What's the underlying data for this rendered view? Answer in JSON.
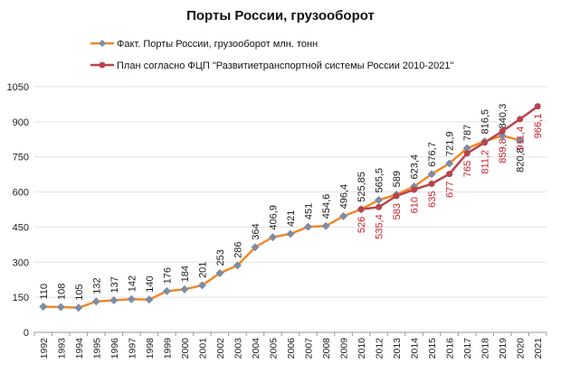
{
  "chart_data": {
    "type": "line",
    "title": "Порты России,  грузооборот",
    "xlabel": "",
    "ylabel": "",
    "ylim": [
      0,
      1050
    ],
    "yticks": [
      0,
      150,
      300,
      450,
      600,
      750,
      900,
      1050
    ],
    "grid": true,
    "legend_position": "top",
    "categories": [
      "1992",
      "1993",
      "1994",
      "1995",
      "1996",
      "1997",
      "1998",
      "1999",
      "2000",
      "2001",
      "2002",
      "2003",
      "2004",
      "2005",
      "2006",
      "2007",
      "2008",
      "2009",
      "2010",
      "2012",
      "2013",
      "2014",
      "2015",
      "2016",
      "2017",
      "2018",
      "2019",
      "2020",
      "2021"
    ],
    "series": [
      {
        "name": "Факт. Порты России, грузооборот млн. тонн",
        "color": "#F0882A",
        "marker_color": "#7D8CA6",
        "label_color": "#1a1a1a",
        "values": [
          110,
          108,
          105,
          132,
          137,
          142,
          140,
          176,
          184,
          201,
          253,
          286,
          364,
          406.9,
          421,
          451,
          454.6,
          496.4,
          525.85,
          565.5,
          589,
          623.4,
          676.7,
          721.9,
          787,
          816.5,
          840.3,
          820.8,
          null
        ],
        "labels": [
          "110",
          "108",
          "105",
          "132",
          "137",
          "142",
          "140",
          "176",
          "184",
          "201",
          "253",
          "286",
          "364",
          "406,9",
          "421",
          "451",
          "454,6",
          "496,4",
          "525,85",
          "565,5",
          "589",
          "623,4",
          "676,7",
          "721,9",
          "787",
          "816,5",
          "840,3",
          "820,8",
          null
        ]
      },
      {
        "name": "План согласно ФЦП \"Развитиетранспортной системы России 2010-2021\"",
        "color": "#B8434B",
        "marker_color": "#B8434B",
        "label_color": "#C8202E",
        "values": [
          null,
          null,
          null,
          null,
          null,
          null,
          null,
          null,
          null,
          null,
          null,
          null,
          null,
          null,
          null,
          null,
          null,
          null,
          526,
          535.4,
          583,
          610,
          635,
          677,
          765,
          811.2,
          859.8,
          911.4,
          966.1
        ],
        "labels": [
          null,
          null,
          null,
          null,
          null,
          null,
          null,
          null,
          null,
          null,
          null,
          null,
          null,
          null,
          null,
          null,
          null,
          null,
          "526",
          "535,4",
          "583",
          "610",
          "635",
          "677",
          "765",
          "811,2",
          "859,8",
          "911,4",
          "966,1"
        ]
      }
    ]
  }
}
